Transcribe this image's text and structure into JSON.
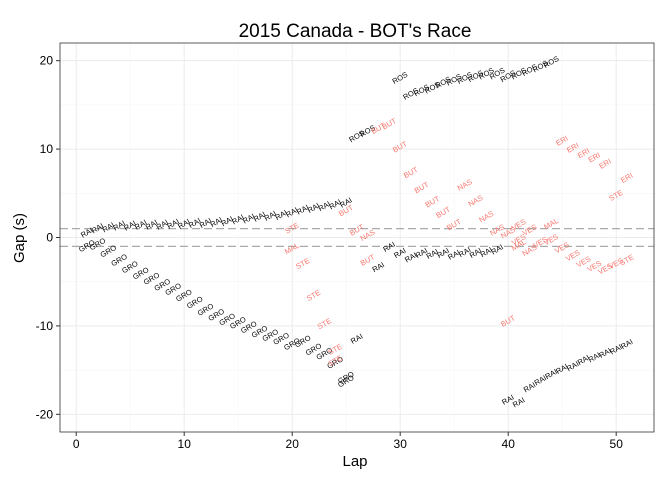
{
  "chart_data": {
    "type": "scatter",
    "title": "2015 Canada - BOT's Race",
    "xlabel": "Lap",
    "ylabel": "Gap (s)",
    "xlim": [
      -1.5,
      53.5
    ],
    "ylim": [
      -22,
      22
    ],
    "xticks": [
      "0",
      "10",
      "20",
      "30",
      "40",
      "50"
    ],
    "yticks": [
      "-20",
      "-10",
      "0",
      "10",
      "20"
    ],
    "grid": true,
    "reference_lines": [
      1,
      -1
    ],
    "colors": {
      "default_label": "#000000",
      "highlight_label": "#f8766d",
      "reference_line": "#aaaaaa",
      "panel_border": "#333333",
      "grid_major": "#ebebeb",
      "grid_minor": "#f5f5f5"
    },
    "points": [
      {
        "x": 1,
        "y": 0.5,
        "label": "RAI",
        "highlight": false
      },
      {
        "x": 2,
        "y": 1.0,
        "label": "RAI",
        "highlight": false
      },
      {
        "x": 3,
        "y": 1.1,
        "label": "RAI",
        "highlight": false
      },
      {
        "x": 4,
        "y": 1.3,
        "label": "RAI",
        "highlight": false
      },
      {
        "x": 5,
        "y": 1.3,
        "label": "RAI",
        "highlight": false
      },
      {
        "x": 6,
        "y": 1.4,
        "label": "RAI",
        "highlight": false
      },
      {
        "x": 7,
        "y": 1.4,
        "label": "RAI",
        "highlight": false
      },
      {
        "x": 8,
        "y": 1.4,
        "label": "RAI",
        "highlight": false
      },
      {
        "x": 9,
        "y": 1.5,
        "label": "RAI",
        "highlight": false
      },
      {
        "x": 10,
        "y": 1.5,
        "label": "RAI",
        "highlight": false
      },
      {
        "x": 11,
        "y": 1.6,
        "label": "RAI",
        "highlight": false
      },
      {
        "x": 12,
        "y": 1.6,
        "label": "RAI",
        "highlight": false
      },
      {
        "x": 13,
        "y": 1.7,
        "label": "RAI",
        "highlight": false
      },
      {
        "x": 14,
        "y": 1.8,
        "label": "RAI",
        "highlight": false
      },
      {
        "x": 15,
        "y": 2.0,
        "label": "RAI",
        "highlight": false
      },
      {
        "x": 16,
        "y": 2.1,
        "label": "RAI",
        "highlight": false
      },
      {
        "x": 17,
        "y": 2.3,
        "label": "RAI",
        "highlight": false
      },
      {
        "x": 18,
        "y": 2.4,
        "label": "RAI",
        "highlight": false
      },
      {
        "x": 19,
        "y": 2.5,
        "label": "RAI",
        "highlight": false
      },
      {
        "x": 20,
        "y": 2.8,
        "label": "RAI",
        "highlight": false
      },
      {
        "x": 21,
        "y": 3.1,
        "label": "RAI",
        "highlight": false
      },
      {
        "x": 22,
        "y": 3.3,
        "label": "RAI",
        "highlight": false
      },
      {
        "x": 23,
        "y": 3.5,
        "label": "RAI",
        "highlight": false
      },
      {
        "x": 24,
        "y": 3.7,
        "label": "RAI",
        "highlight": false
      },
      {
        "x": 25,
        "y": 3.9,
        "label": "RAI",
        "highlight": false
      },
      {
        "x": 1,
        "y": -1.0,
        "label": "GRO",
        "highlight": false
      },
      {
        "x": 2,
        "y": -0.8,
        "label": "GRO",
        "highlight": false
      },
      {
        "x": 3,
        "y": -1.6,
        "label": "GRO",
        "highlight": false
      },
      {
        "x": 4,
        "y": -2.6,
        "label": "GRO",
        "highlight": false
      },
      {
        "x": 5,
        "y": -3.4,
        "label": "GRO",
        "highlight": false
      },
      {
        "x": 6,
        "y": -4.1,
        "label": "GRO",
        "highlight": false
      },
      {
        "x": 7,
        "y": -4.7,
        "label": "GRO",
        "highlight": false
      },
      {
        "x": 8,
        "y": -5.4,
        "label": "GRO",
        "highlight": false
      },
      {
        "x": 9,
        "y": -5.9,
        "label": "GRO",
        "highlight": false
      },
      {
        "x": 10,
        "y": -6.6,
        "label": "GRO",
        "highlight": false
      },
      {
        "x": 11,
        "y": -7.4,
        "label": "GRO",
        "highlight": false
      },
      {
        "x": 12,
        "y": -8.2,
        "label": "GRO",
        "highlight": false
      },
      {
        "x": 13,
        "y": -8.8,
        "label": "GRO",
        "highlight": false
      },
      {
        "x": 14,
        "y": -9.3,
        "label": "GRO",
        "highlight": false
      },
      {
        "x": 15,
        "y": -9.7,
        "label": "GRO",
        "highlight": false
      },
      {
        "x": 16,
        "y": -10.2,
        "label": "GRO",
        "highlight": false
      },
      {
        "x": 17,
        "y": -10.7,
        "label": "GRO",
        "highlight": false
      },
      {
        "x": 18,
        "y": -11.1,
        "label": "GRO",
        "highlight": false
      },
      {
        "x": 19,
        "y": -11.5,
        "label": "GRO",
        "highlight": false
      },
      {
        "x": 20,
        "y": -12.1,
        "label": "GRO",
        "highlight": false
      },
      {
        "x": 21,
        "y": -11.8,
        "label": "GRO",
        "highlight": false
      },
      {
        "x": 22,
        "y": -12.7,
        "label": "GRO",
        "highlight": false
      },
      {
        "x": 23,
        "y": -13.2,
        "label": "GRO",
        "highlight": false
      },
      {
        "x": 24,
        "y": -14.2,
        "label": "GRO",
        "highlight": false
      },
      {
        "x": 25,
        "y": -15.9,
        "label": "GRO",
        "highlight": false
      },
      {
        "x": 25,
        "y": -16.3,
        "label": "GRO",
        "highlight": false
      },
      {
        "x": 20,
        "y": 1.0,
        "label": "STE",
        "highlight": true
      },
      {
        "x": 20,
        "y": -1.3,
        "label": "MAL",
        "highlight": true
      },
      {
        "x": 21,
        "y": -3.0,
        "label": "STE",
        "highlight": true
      },
      {
        "x": 22,
        "y": -6.6,
        "label": "STE",
        "highlight": true
      },
      {
        "x": 23,
        "y": -9.8,
        "label": "STE",
        "highlight": true
      },
      {
        "x": 24,
        "y": -12.7,
        "label": "STE",
        "highlight": true
      },
      {
        "x": 24,
        "y": -14.0,
        "label": "STE",
        "highlight": true
      },
      {
        "x": 25,
        "y": 3.0,
        "label": "BUT",
        "highlight": true
      },
      {
        "x": 26,
        "y": 0.8,
        "label": "BUT",
        "highlight": true
      },
      {
        "x": 27,
        "y": 0.2,
        "label": "NAS",
        "highlight": true
      },
      {
        "x": 27,
        "y": -2.6,
        "label": "BUT",
        "highlight": true
      },
      {
        "x": 26,
        "y": -11.5,
        "label": "RAI",
        "highlight": false
      },
      {
        "x": 26,
        "y": 11.4,
        "label": "ROS",
        "highlight": false
      },
      {
        "x": 27,
        "y": 12.0,
        "label": "ROS",
        "highlight": false
      },
      {
        "x": 30,
        "y": 18.0,
        "label": "ROS",
        "highlight": false
      },
      {
        "x": 31,
        "y": 16.2,
        "label": "ROS",
        "highlight": false
      },
      {
        "x": 32,
        "y": 16.6,
        "label": "ROS",
        "highlight": false
      },
      {
        "x": 33,
        "y": 16.9,
        "label": "ROS",
        "highlight": false
      },
      {
        "x": 34,
        "y": 17.5,
        "label": "ROS",
        "highlight": false
      },
      {
        "x": 35,
        "y": 17.8,
        "label": "ROS",
        "highlight": false
      },
      {
        "x": 36,
        "y": 18.0,
        "label": "ROS",
        "highlight": false
      },
      {
        "x": 37,
        "y": 18.2,
        "label": "ROS",
        "highlight": false
      },
      {
        "x": 38,
        "y": 18.5,
        "label": "ROS",
        "highlight": false
      },
      {
        "x": 39,
        "y": 18.5,
        "label": "ROS",
        "highlight": false
      },
      {
        "x": 40,
        "y": 18.2,
        "label": "ROS",
        "highlight": false
      },
      {
        "x": 41,
        "y": 18.5,
        "label": "ROS",
        "highlight": false
      },
      {
        "x": 42,
        "y": 18.9,
        "label": "ROS",
        "highlight": false
      },
      {
        "x": 43,
        "y": 19.3,
        "label": "ROS",
        "highlight": false
      },
      {
        "x": 44,
        "y": 19.8,
        "label": "ROS",
        "highlight": false
      },
      {
        "x": 28,
        "y": 12.3,
        "label": "BUT",
        "highlight": true
      },
      {
        "x": 29,
        "y": 12.8,
        "label": "BUT",
        "highlight": true
      },
      {
        "x": 30,
        "y": 10.2,
        "label": "BUT",
        "highlight": true
      },
      {
        "x": 31,
        "y": 7.3,
        "label": "BUT",
        "highlight": true
      },
      {
        "x": 32,
        "y": 5.6,
        "label": "BUT",
        "highlight": true
      },
      {
        "x": 33,
        "y": 4.0,
        "label": "BUT",
        "highlight": true
      },
      {
        "x": 34,
        "y": 2.8,
        "label": "BUT",
        "highlight": true
      },
      {
        "x": 35,
        "y": 1.4,
        "label": "BUT",
        "highlight": true
      },
      {
        "x": 36,
        "y": 5.9,
        "label": "NAS",
        "highlight": true
      },
      {
        "x": 37,
        "y": 4.1,
        "label": "NAS",
        "highlight": true
      },
      {
        "x": 38,
        "y": 2.3,
        "label": "NAS",
        "highlight": true
      },
      {
        "x": 39,
        "y": 0.8,
        "label": "NAS",
        "highlight": true
      },
      {
        "x": 40,
        "y": 0.5,
        "label": "NAS",
        "highlight": true
      },
      {
        "x": 41,
        "y": -0.9,
        "label": "MAL",
        "highlight": true
      },
      {
        "x": 42,
        "y": -1.5,
        "label": "NAS",
        "highlight": true
      },
      {
        "x": 28,
        "y": -3.4,
        "label": "RAI",
        "highlight": false
      },
      {
        "x": 29,
        "y": -1.1,
        "label": "RAI",
        "highlight": false
      },
      {
        "x": 30,
        "y": -1.8,
        "label": "RAI",
        "highlight": false
      },
      {
        "x": 31,
        "y": -2.3,
        "label": "RAI",
        "highlight": false
      },
      {
        "x": 32,
        "y": -1.8,
        "label": "RAI",
        "highlight": false
      },
      {
        "x": 33,
        "y": -1.9,
        "label": "RAI",
        "highlight": false
      },
      {
        "x": 34,
        "y": -1.8,
        "label": "RAI",
        "highlight": false
      },
      {
        "x": 35,
        "y": -2.0,
        "label": "RAI",
        "highlight": false
      },
      {
        "x": 36,
        "y": -1.7,
        "label": "RAI",
        "highlight": false
      },
      {
        "x": 37,
        "y": -1.8,
        "label": "RAI",
        "highlight": false
      },
      {
        "x": 38,
        "y": -1.7,
        "label": "RAI",
        "highlight": false
      },
      {
        "x": 39,
        "y": -1.4,
        "label": "RAI",
        "highlight": false
      },
      {
        "x": 40,
        "y": -9.5,
        "label": "BUT",
        "highlight": true
      },
      {
        "x": 41,
        "y": -0.3,
        "label": "VES",
        "highlight": true
      },
      {
        "x": 41,
        "y": 1.4,
        "label": "VES",
        "highlight": true
      },
      {
        "x": 42,
        "y": 0.8,
        "label": "VES",
        "highlight": true
      },
      {
        "x": 43,
        "y": -0.6,
        "label": "VES",
        "highlight": true
      },
      {
        "x": 44,
        "y": 1.5,
        "label": "MAL",
        "highlight": true
      },
      {
        "x": 44,
        "y": -0.3,
        "label": "VES",
        "highlight": true
      },
      {
        "x": 45,
        "y": -1.2,
        "label": "VES",
        "highlight": true
      },
      {
        "x": 46,
        "y": -2.1,
        "label": "VES",
        "highlight": true
      },
      {
        "x": 47,
        "y": -2.8,
        "label": "VES",
        "highlight": true
      },
      {
        "x": 48,
        "y": -3.3,
        "label": "VES",
        "highlight": true
      },
      {
        "x": 49,
        "y": -3.6,
        "label": "VES",
        "highlight": true
      },
      {
        "x": 50,
        "y": -3.0,
        "label": "VES",
        "highlight": true
      },
      {
        "x": 51,
        "y": -2.6,
        "label": "STE",
        "highlight": true
      },
      {
        "x": 45,
        "y": 10.9,
        "label": "ERI",
        "highlight": true
      },
      {
        "x": 46,
        "y": 10.1,
        "label": "ERI",
        "highlight": true
      },
      {
        "x": 47,
        "y": 9.5,
        "label": "ERI",
        "highlight": true
      },
      {
        "x": 48,
        "y": 9.0,
        "label": "ERI",
        "highlight": true
      },
      {
        "x": 49,
        "y": 8.3,
        "label": "ERI",
        "highlight": true
      },
      {
        "x": 50,
        "y": 4.7,
        "label": "STE",
        "highlight": true
      },
      {
        "x": 51,
        "y": 6.7,
        "label": "ERI",
        "highlight": true
      },
      {
        "x": 40,
        "y": -18.4,
        "label": "RAI",
        "highlight": false
      },
      {
        "x": 41,
        "y": -18.7,
        "label": "RAI",
        "highlight": false
      },
      {
        "x": 42,
        "y": -17.0,
        "label": "RAI",
        "highlight": false
      },
      {
        "x": 43,
        "y": -16.2,
        "label": "RAI",
        "highlight": false
      },
      {
        "x": 44,
        "y": -15.5,
        "label": "RAI",
        "highlight": false
      },
      {
        "x": 45,
        "y": -14.9,
        "label": "RAI",
        "highlight": false
      },
      {
        "x": 46,
        "y": -14.6,
        "label": "RAI",
        "highlight": false
      },
      {
        "x": 47,
        "y": -13.9,
        "label": "RAI",
        "highlight": false
      },
      {
        "x": 48,
        "y": -13.6,
        "label": "RAI",
        "highlight": false
      },
      {
        "x": 49,
        "y": -13.1,
        "label": "RAI",
        "highlight": false
      },
      {
        "x": 50,
        "y": -12.7,
        "label": "RAI",
        "highlight": false
      },
      {
        "x": 51,
        "y": -12.1,
        "label": "RAI",
        "highlight": false
      }
    ]
  }
}
